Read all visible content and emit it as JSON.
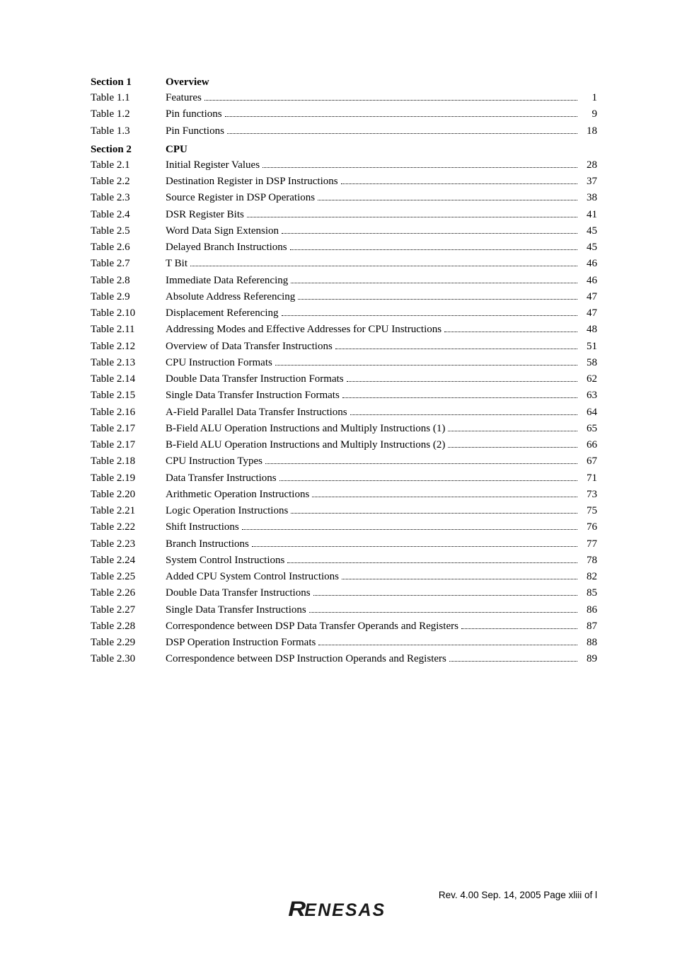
{
  "sections": [
    {
      "id": "s1",
      "label": "Section 1",
      "title": "Overview",
      "first": true,
      "entries": [
        {
          "label": "Table 1.1",
          "title": "Features",
          "page": "1"
        },
        {
          "label": "Table 1.2",
          "title": "Pin functions",
          "page": "9"
        },
        {
          "label": "Table 1.3",
          "title": "Pin Functions",
          "page": "18"
        }
      ]
    },
    {
      "id": "s2",
      "label": "Section 2",
      "title": "CPU",
      "first": false,
      "entries": [
        {
          "label": "Table 2.1",
          "title": "Initial Register Values",
          "page": "28"
        },
        {
          "label": "Table 2.2",
          "title": "Destination Register in DSP Instructions",
          "page": "37"
        },
        {
          "label": "Table 2.3",
          "title": "Source Register in DSP Operations",
          "page": "38"
        },
        {
          "label": "Table 2.4",
          "title": "DSR Register Bits",
          "page": "41"
        },
        {
          "label": "Table 2.5",
          "title": "Word Data Sign Extension",
          "page": "45"
        },
        {
          "label": "Table 2.6",
          "title": "Delayed Branch Instructions",
          "page": "45"
        },
        {
          "label": "Table 2.7",
          "title": "T Bit",
          "page": "46"
        },
        {
          "label": "Table 2.8",
          "title": "Immediate Data Referencing",
          "page": "46"
        },
        {
          "label": "Table 2.9",
          "title": "Absolute Address Referencing",
          "page": "47"
        },
        {
          "label": "Table 2.10",
          "title": "Displacement Referencing",
          "page": "47"
        },
        {
          "label": "Table 2.11",
          "title": "Addressing Modes and Effective Addresses for CPU Instructions",
          "page": "48"
        },
        {
          "label": "Table 2.12",
          "title": "Overview of Data Transfer Instructions",
          "page": "51"
        },
        {
          "label": "Table 2.13",
          "title": "CPU Instruction Formats",
          "page": "58"
        },
        {
          "label": "Table 2.14",
          "title": "Double Data Transfer Instruction Formats",
          "page": "62"
        },
        {
          "label": "Table 2.15",
          "title": "Single Data Transfer Instruction Formats",
          "page": "63"
        },
        {
          "label": "Table 2.16",
          "title": "A-Field Parallel Data Transfer Instructions",
          "page": "64"
        },
        {
          "label": "Table 2.17",
          "title": "B-Field ALU Operation Instructions and Multiply Instructions (1)",
          "page": "65"
        },
        {
          "label": "Table 2.17",
          "title": "B-Field ALU Operation Instructions and Multiply Instructions (2)",
          "page": "66"
        },
        {
          "label": "Table 2.18",
          "title": "CPU Instruction Types",
          "page": "67"
        },
        {
          "label": "Table 2.19",
          "title": "Data Transfer Instructions",
          "page": "71"
        },
        {
          "label": "Table 2.20",
          "title": "Arithmetic Operation Instructions",
          "page": "73"
        },
        {
          "label": "Table 2.21",
          "title": "Logic Operation Instructions",
          "page": "75"
        },
        {
          "label": "Table 2.22",
          "title": "Shift Instructions",
          "page": "76"
        },
        {
          "label": "Table 2.23",
          "title": "Branch Instructions",
          "page": "77"
        },
        {
          "label": "Table 2.24",
          "title": "System Control Instructions",
          "page": "78"
        },
        {
          "label": "Table 2.25",
          "title": "Added CPU System Control Instructions",
          "page": "82"
        },
        {
          "label": "Table 2.26",
          "title": "Double Data Transfer Instructions",
          "page": "85"
        },
        {
          "label": "Table 2.27",
          "title": "Single Data Transfer Instructions",
          "page": "86"
        },
        {
          "label": "Table 2.28",
          "title": "Correspondence between DSP Data Transfer Operands and Registers",
          "page": "87"
        },
        {
          "label": "Table 2.29",
          "title": "DSP Operation Instruction Formats",
          "page": "88"
        },
        {
          "label": "Table 2.30",
          "title": "Correspondence between DSP Instruction Operands and Registers",
          "page": "89"
        }
      ]
    }
  ],
  "footer": {
    "rev": "Rev. 4.00  Sep. 14, 2005  Page xliii of l",
    "brand": "RENESAS"
  }
}
